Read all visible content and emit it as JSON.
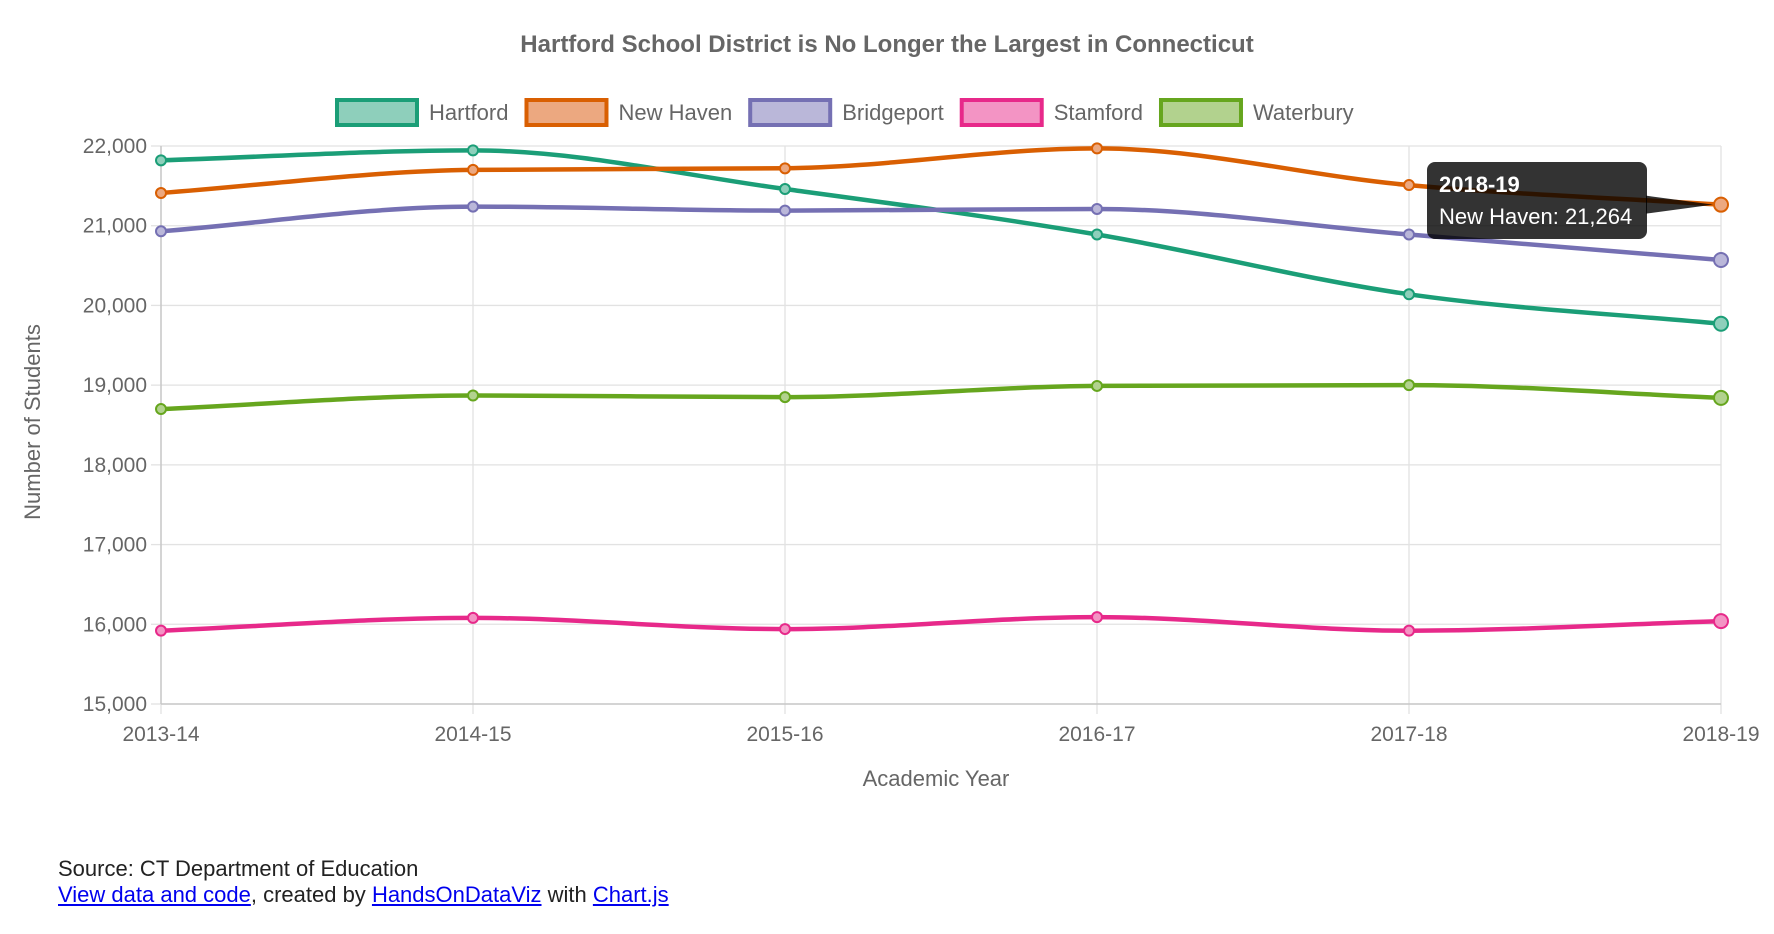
{
  "chart_data": {
    "type": "line",
    "title": "Hartford School District is No Longer the Largest in Connecticut",
    "xlabel": "Academic Year",
    "ylabel": "Number of Students",
    "ylim": [
      15000,
      22000
    ],
    "y_ticks": [
      "22,000",
      "21,000",
      "20,000",
      "19,000",
      "18,000",
      "17,000",
      "16,000",
      "15,000"
    ],
    "categories": [
      "2013-14",
      "2014-15",
      "2015-16",
      "2016-17",
      "2017-18",
      "2018-19"
    ],
    "grid": true,
    "legend_position": "top",
    "series": [
      {
        "name": "Hartford",
        "color": "#1b9e77",
        "fill": "#8ecfbb",
        "values": [
          21820,
          21945,
          21460,
          20890,
          20140,
          19770
        ]
      },
      {
        "name": "New Haven",
        "color": "#d95f02",
        "fill": "#eca880",
        "values": [
          21410,
          21700,
          21720,
          21970,
          21510,
          21264
        ]
      },
      {
        "name": "Bridgeport",
        "color": "#7570b3",
        "fill": "#bab7d9",
        "values": [
          20930,
          21240,
          21190,
          21210,
          20890,
          20570
        ]
      },
      {
        "name": "Stamford",
        "color": "#e7298a",
        "fill": "#f394c4",
        "values": [
          15920,
          16080,
          15940,
          16090,
          15920,
          16040
        ]
      },
      {
        "name": "Waterbury",
        "color": "#66a61e",
        "fill": "#b2d28e",
        "values": [
          18700,
          18870,
          18850,
          18990,
          19000,
          18840
        ]
      }
    ],
    "tooltip": {
      "title": "2018-19",
      "body": "New Haven: 21,264"
    }
  },
  "footer": {
    "source": "Source: CT Department of Education",
    "link_data": "View data and code",
    "text_created_by": ", created by ",
    "link_author": "HandsOnDataViz",
    "text_with": " with ",
    "link_lib": "Chart.js"
  }
}
